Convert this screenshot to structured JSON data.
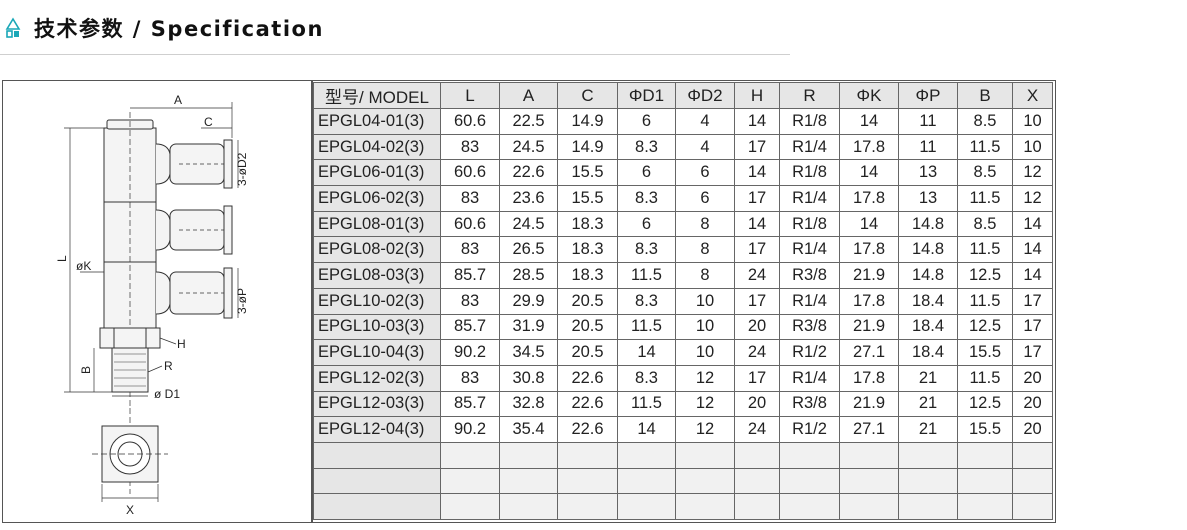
{
  "header": {
    "title": "技术参数 / Specification",
    "icon": "triangle-square-icon",
    "accent_color": "#1aa7b7"
  },
  "drawing": {
    "labels": {
      "A": "A",
      "C": "C",
      "D2": "3-øD2",
      "L": "L",
      "K": "øK",
      "P": "3-øP",
      "H": "H",
      "B": "B",
      "R": "R",
      "D1": "ø D1",
      "X": "X"
    }
  },
  "table": {
    "headers": [
      "型号/ MODEL",
      "L",
      "A",
      "C",
      "ΦD1",
      "ΦD2",
      "H",
      "R",
      "ΦK",
      "ΦP",
      "B",
      "X"
    ],
    "rows": [
      [
        "EPGL04-01(3)",
        "60.6",
        "22.5",
        "14.9",
        "6",
        "4",
        "14",
        "R1/8",
        "14",
        "11",
        "8.5",
        "10"
      ],
      [
        "EPGL04-02(3)",
        "83",
        "24.5",
        "14.9",
        "8.3",
        "4",
        "17",
        "R1/4",
        "17.8",
        "11",
        "11.5",
        "10"
      ],
      [
        "EPGL06-01(3)",
        "60.6",
        "22.6",
        "15.5",
        "6",
        "6",
        "14",
        "R1/8",
        "14",
        "13",
        "8.5",
        "12"
      ],
      [
        "EPGL06-02(3)",
        "83",
        "23.6",
        "15.5",
        "8.3",
        "6",
        "17",
        "R1/4",
        "17.8",
        "13",
        "11.5",
        "12"
      ],
      [
        "EPGL08-01(3)",
        "60.6",
        "24.5",
        "18.3",
        "6",
        "8",
        "14",
        "R1/8",
        "14",
        "14.8",
        "8.5",
        "14"
      ],
      [
        "EPGL08-02(3)",
        "83",
        "26.5",
        "18.3",
        "8.3",
        "8",
        "17",
        "R1/4",
        "17.8",
        "14.8",
        "11.5",
        "14"
      ],
      [
        "EPGL08-03(3)",
        "85.7",
        "28.5",
        "18.3",
        "11.5",
        "8",
        "24",
        "R3/8",
        "21.9",
        "14.8",
        "12.5",
        "14"
      ],
      [
        "EPGL10-02(3)",
        "83",
        "29.9",
        "20.5",
        "8.3",
        "10",
        "17",
        "R1/4",
        "17.8",
        "18.4",
        "11.5",
        "17"
      ],
      [
        "EPGL10-03(3)",
        "85.7",
        "31.9",
        "20.5",
        "11.5",
        "10",
        "20",
        "R3/8",
        "21.9",
        "18.4",
        "12.5",
        "17"
      ],
      [
        "EPGL10-04(3)",
        "90.2",
        "34.5",
        "20.5",
        "14",
        "10",
        "24",
        "R1/2",
        "27.1",
        "18.4",
        "15.5",
        "17"
      ],
      [
        "EPGL12-02(3)",
        "83",
        "30.8",
        "22.6",
        "8.3",
        "12",
        "17",
        "R1/4",
        "17.8",
        "21",
        "11.5",
        "20"
      ],
      [
        "EPGL12-03(3)",
        "85.7",
        "32.8",
        "22.6",
        "11.5",
        "12",
        "20",
        "R3/8",
        "21.9",
        "21",
        "12.5",
        "20"
      ],
      [
        "EPGL12-04(3)",
        "90.2",
        "35.4",
        "22.6",
        "14",
        "12",
        "24",
        "R1/2",
        "27.1",
        "21",
        "15.5",
        "20"
      ]
    ],
    "empty_rows": 3
  }
}
